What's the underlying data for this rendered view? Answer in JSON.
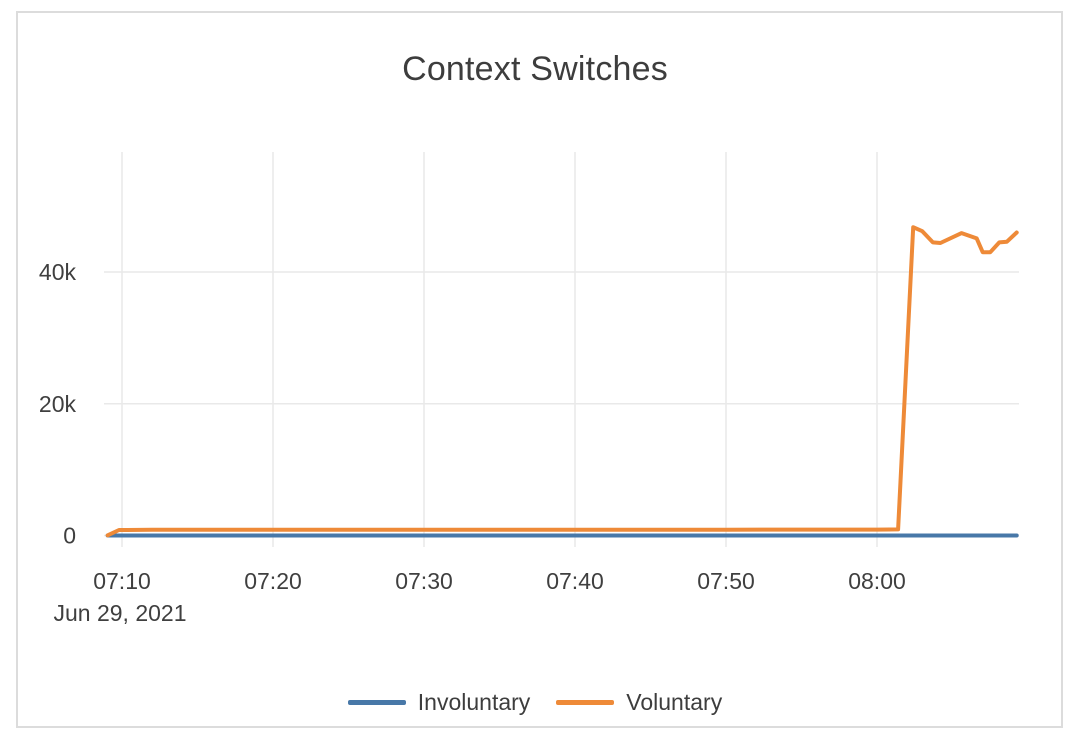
{
  "colors": {
    "background": "#ffffff",
    "card_border": "#dcdcdc",
    "grid": "#e9e9e9",
    "text": "#3f3f3f",
    "title_text": "#3d3d3d"
  },
  "chart_data": {
    "type": "line",
    "title": "Context Switches",
    "grid": true,
    "legend_position": "bottom-center",
    "x_axis": {
      "unit": "time (minutes after 07:00), Jun 29, 2021",
      "date_label": "Jun 29, 2021",
      "range": [
        9.05,
        69.25
      ],
      "ticks": [
        {
          "t": 10,
          "label": "07:10"
        },
        {
          "t": 20,
          "label": "07:20"
        },
        {
          "t": 30,
          "label": "07:30"
        },
        {
          "t": 40,
          "label": "07:40"
        },
        {
          "t": 50,
          "label": "07:50"
        },
        {
          "t": 60,
          "label": "08:00"
        }
      ]
    },
    "y_axis": {
      "unit": "context switches",
      "range": [
        -1700,
        58300
      ],
      "ticks": [
        {
          "v": 0,
          "label": "0"
        },
        {
          "v": 20000,
          "label": "20k"
        },
        {
          "v": 40000,
          "label": "40k"
        }
      ]
    },
    "series": [
      {
        "name": "Involuntary",
        "color": "#4878a8",
        "points": [
          [
            9.05,
            0
          ],
          [
            20,
            0
          ],
          [
            30,
            0
          ],
          [
            40,
            0
          ],
          [
            50,
            0
          ],
          [
            60,
            0
          ],
          [
            69.25,
            0
          ]
        ]
      },
      {
        "name": "Voluntary",
        "color": "#ee8a38",
        "points": [
          [
            9.05,
            30
          ],
          [
            9.8,
            830
          ],
          [
            12,
            860
          ],
          [
            20,
            870
          ],
          [
            30,
            870
          ],
          [
            40,
            880
          ],
          [
            50,
            880
          ],
          [
            60,
            890
          ],
          [
            61.4,
            930
          ],
          [
            62.4,
            46800
          ],
          [
            63.0,
            46200
          ],
          [
            63.7,
            44500
          ],
          [
            64.2,
            44400
          ],
          [
            65.6,
            45900
          ],
          [
            66.6,
            45100
          ],
          [
            67.0,
            43000
          ],
          [
            67.5,
            43000
          ],
          [
            68.1,
            44500
          ],
          [
            68.6,
            44600
          ],
          [
            69.25,
            46000
          ]
        ]
      }
    ]
  }
}
